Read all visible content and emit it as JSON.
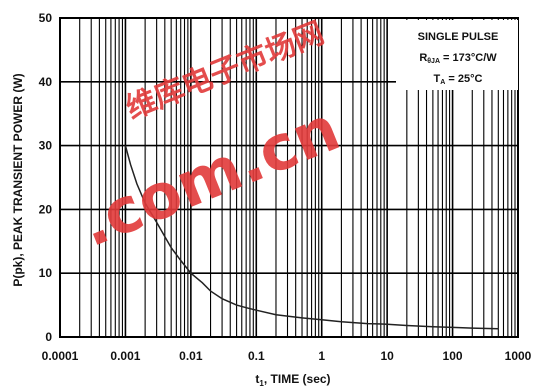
{
  "chart_data": {
    "type": "line",
    "x_scale": "log",
    "xlim": [
      0.0001,
      1000
    ],
    "ylim": [
      0,
      50
    ],
    "x_ticks": [
      "0.0001",
      "0.001",
      "0.01",
      "0.1",
      "1",
      "10",
      "100",
      "1000"
    ],
    "y_ticks": [
      "0",
      "10",
      "20",
      "30",
      "40",
      "50"
    ],
    "xlabel_prefix": "t",
    "xlabel_sub": "1",
    "xlabel_suffix": ", TIME (sec)",
    "ylabel": "P(pk), PEAK TRANSIENT POWER (W)",
    "grid": true,
    "legend_position": "top-right",
    "annotations": {
      "line1": "SINGLE PULSE",
      "line2_prefix": "R",
      "line2_sub": "θJA",
      "line2_suffix": " = 173°C/W",
      "line3_prefix": "T",
      "line3_sub": "A",
      "line3_suffix": " = 25°C"
    },
    "series": [
      {
        "x": [
          0.001,
          0.0012,
          0.0015,
          0.002,
          0.003,
          0.005,
          0.007,
          0.01,
          0.015,
          0.02,
          0.03,
          0.05,
          0.07,
          0.1,
          0.2,
          0.5,
          1,
          2,
          5,
          10,
          20,
          50,
          100,
          200,
          500
        ],
        "values": [
          30,
          27,
          24,
          21,
          18,
          14,
          12,
          10,
          8.5,
          7.2,
          6.0,
          5.0,
          4.6,
          4.2,
          3.5,
          3.0,
          2.7,
          2.4,
          2.1,
          2.0,
          1.8,
          1.6,
          1.5,
          1.4,
          1.3
        ]
      }
    ],
    "line_color": "#222222"
  },
  "watermark": {
    "text_top": "维库电子市场网",
    "text_main": ".com.cn",
    "color": "#e23a3a"
  }
}
